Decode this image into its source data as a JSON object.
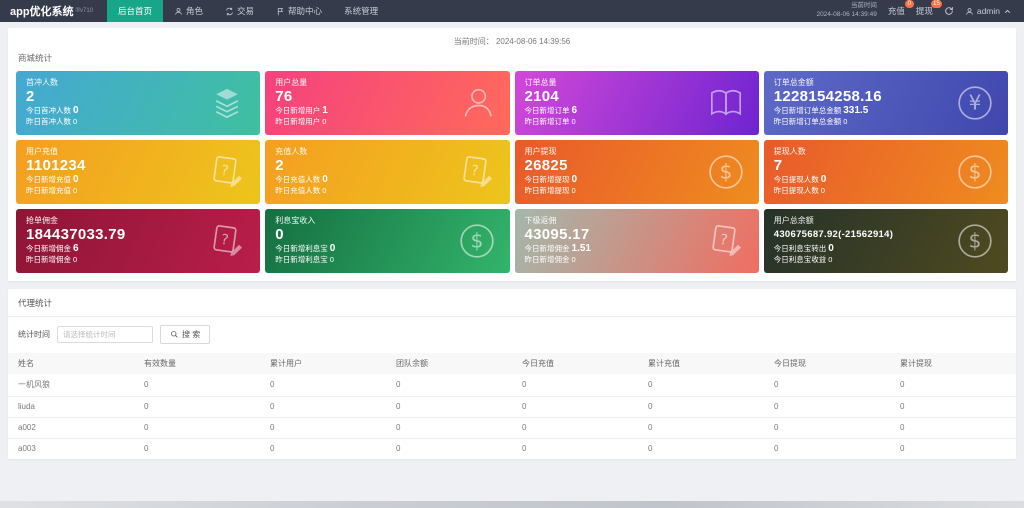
{
  "navbar": {
    "logo": "app优化系统",
    "logo_sub": "®v710",
    "menu": [
      {
        "key": "home",
        "label": "后台首页",
        "icon": "",
        "active": true
      },
      {
        "key": "roles",
        "label": "角色",
        "icon": "person-icon",
        "active": false
      },
      {
        "key": "trade",
        "label": "交易",
        "icon": "exchange-icon",
        "active": false
      },
      {
        "key": "help-center",
        "label": "帮助中心",
        "icon": "flag-icon",
        "active": false
      },
      {
        "key": "system",
        "label": "系统管理",
        "icon": "",
        "active": false
      }
    ],
    "time_label": "当前时间",
    "time_value": "2024-08-06 14:39:49",
    "recharge": {
      "label": "充值",
      "badge": "0"
    },
    "withdraw": {
      "label": "提现",
      "badge": "15"
    },
    "user": "admin"
  },
  "stats_panel": {
    "current_time": "当前时间： 2024-08-06 14:39:56",
    "section_title": "商城统计",
    "cards": [
      {
        "key": "first-charge-users",
        "label": "首冲人数",
        "value": "2",
        "small": false,
        "icon": "layers-icon",
        "grad": [
          "#45a8d4",
          "#3fc0a0"
        ],
        "lines": [
          {
            "label": "今日首冲人数",
            "value": "0",
            "strong": true
          },
          {
            "label": "昨日首冲人数",
            "value": "0",
            "strong": false
          }
        ]
      },
      {
        "key": "total-users",
        "label": "用户总量",
        "value": "76",
        "small": false,
        "icon": "user-icon",
        "grad": [
          "#f5417e",
          "#ff6a5b"
        ],
        "lines": [
          {
            "label": "今日新增用户",
            "value": "1",
            "strong": true
          },
          {
            "label": "昨日新增用户",
            "value": "0",
            "strong": false
          }
        ]
      },
      {
        "key": "total-orders",
        "label": "订单总量",
        "value": "2104",
        "small": false,
        "icon": "book-icon",
        "grad": [
          "#d348d8",
          "#6e24d1"
        ],
        "lines": [
          {
            "label": "今日新增订单",
            "value": "6",
            "strong": true
          },
          {
            "label": "昨日新增订单",
            "value": "0",
            "strong": false
          }
        ]
      },
      {
        "key": "order-total-amount",
        "label": "订单总金额",
        "value": "1228154258.16",
        "small": false,
        "icon": "yen-icon",
        "grad": [
          "#5e6ac8",
          "#3f47ad"
        ],
        "lines": [
          {
            "label": "今日新增订单总金额",
            "value": "331.5",
            "strong": true
          },
          {
            "label": "昨日新增订单总金额",
            "value": "0",
            "strong": false
          }
        ]
      },
      {
        "key": "user-recharge",
        "label": "用户充值",
        "value": "1101234",
        "small": false,
        "icon": "doc-question-icon",
        "grad": [
          "#f59e21",
          "#edc51c"
        ],
        "lines": [
          {
            "label": "今日新增充值",
            "value": "0",
            "strong": true
          },
          {
            "label": "昨日新增充值",
            "value": "0",
            "strong": false
          }
        ]
      },
      {
        "key": "recharge-users",
        "label": "充值人数",
        "value": "2",
        "small": false,
        "icon": "doc-question-icon",
        "grad": [
          "#f59e21",
          "#edc51c"
        ],
        "lines": [
          {
            "label": "今日充值人数",
            "value": "0",
            "strong": true
          },
          {
            "label": "昨日充值人数",
            "value": "0",
            "strong": false
          }
        ]
      },
      {
        "key": "user-withdraw",
        "label": "用户提现",
        "value": "26825",
        "small": false,
        "icon": "dollar-icon",
        "grad": [
          "#e95a2b",
          "#ef8c1f"
        ],
        "lines": [
          {
            "label": "今日新增提现",
            "value": "0",
            "strong": true
          },
          {
            "label": "昨日新增提现",
            "value": "0",
            "strong": false
          }
        ]
      },
      {
        "key": "withdraw-users",
        "label": "提现人数",
        "value": "7",
        "small": false,
        "icon": "dollar-icon",
        "grad": [
          "#e95a2b",
          "#ef8c1f"
        ],
        "lines": [
          {
            "label": "今日提现人数",
            "value": "0",
            "strong": true
          },
          {
            "label": "昨日提现人数",
            "value": "0",
            "strong": false
          }
        ]
      },
      {
        "key": "order-commission",
        "label": "抢单佣金",
        "value": "184437033.79",
        "small": false,
        "icon": "doc-question-icon",
        "grad": [
          "#8e1535",
          "#b91e4a"
        ],
        "lines": [
          {
            "label": "今日新增佣金",
            "value": "6",
            "strong": true
          },
          {
            "label": "昨日新增佣金",
            "value": "0",
            "strong": false
          }
        ]
      },
      {
        "key": "interest-income",
        "label": "利息宝收入",
        "value": "0",
        "small": false,
        "icon": "dollar-icon",
        "grad": [
          "#156f41",
          "#33b46b"
        ],
        "lines": [
          {
            "label": "今日新增利息宝",
            "value": "0",
            "strong": true
          },
          {
            "label": "昨日新增利息宝",
            "value": "0",
            "strong": false
          }
        ]
      },
      {
        "key": "sub-commission",
        "label": "下级返佣",
        "value": "43095.17",
        "small": false,
        "icon": "doc-question-icon",
        "grad": [
          "#a3b8ab",
          "#ef6e61"
        ],
        "lines": [
          {
            "label": "今日新增佣金",
            "value": "1.51",
            "strong": true
          },
          {
            "label": "昨日新增佣金",
            "value": "0",
            "strong": false
          }
        ]
      },
      {
        "key": "user-total-balance",
        "label": "用户总余额",
        "value": "430675687.92(-21562914)",
        "small": true,
        "icon": "dollar-icon",
        "grad": [
          "#263229",
          "#4f4a20"
        ],
        "lines": [
          {
            "label": "今日利息宝转出",
            "value": "0",
            "strong": true
          },
          {
            "label": "今日利息宝收益",
            "value": "0",
            "strong": false
          }
        ]
      }
    ]
  },
  "agent_panel": {
    "title": "代理统计",
    "filter_label": "统计时间",
    "filter_placeholder": "请选择统计时间",
    "search_label": "搜 索",
    "table": {
      "headers": [
        "姓名",
        "有效数量",
        "累计用户",
        "团队余额",
        "今日充值",
        "累计充值",
        "今日提现",
        "累计提现"
      ],
      "rows": [
        [
          "一机风狼",
          "0",
          "0",
          "0",
          "0",
          "0",
          "0",
          "0"
        ],
        [
          "liuda",
          "0",
          "0",
          "0",
          "0",
          "0",
          "0",
          "0"
        ],
        [
          "a002",
          "0",
          "0",
          "0",
          "0",
          "0",
          "0",
          "0"
        ],
        [
          "a003",
          "0",
          "0",
          "0",
          "0",
          "0",
          "0",
          "0"
        ]
      ]
    }
  },
  "colors": {
    "navbar_bg": "#353b4b",
    "active_menu": "#18a689",
    "badge": "#ff7043",
    "page_bg": "#eef0f3"
  }
}
